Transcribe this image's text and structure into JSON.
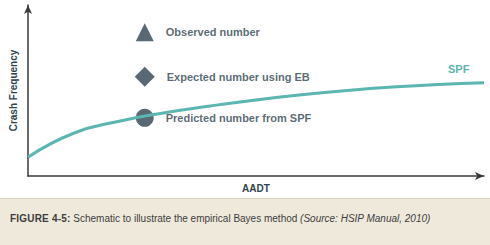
{
  "chart_data": {
    "type": "line",
    "x_label": "AADT",
    "y_label": "Crash Frequency",
    "xlim": [
      0,
      100
    ],
    "ylim": [
      0,
      100
    ],
    "tick_labels": false,
    "grid": false,
    "series": [
      {
        "name": "SPF",
        "type": "line",
        "color": "#5bb5b0",
        "marker": "none",
        "x": [
          0,
          10,
          20,
          30,
          40,
          50,
          60,
          70,
          80,
          90,
          100
        ],
        "values": [
          11,
          25,
          32,
          37,
          41,
          44.5,
          47.5,
          50,
          52,
          53.5,
          54.5
        ]
      },
      {
        "name": "Observed number",
        "type": "scatter",
        "color": "#2e4450",
        "marker": "triangle",
        "x": [
          25.6
        ],
        "values": [
          84
        ]
      },
      {
        "name": "Expected number using EB",
        "type": "scatter",
        "color": "#2e4450",
        "marker": "diamond",
        "x": [
          25.6
        ],
        "values": [
          58
        ]
      },
      {
        "name": "Predicted number from SPF",
        "type": "scatter",
        "color": "#2e4450",
        "marker": "circle",
        "x": [
          25.6
        ],
        "values": [
          34
        ]
      }
    ],
    "caption": {
      "label": "FIGURE 4-5:",
      "text": "Schematic to illustrate the empirical Bayes method",
      "source": "(Source: HSIP Manual, 2010)"
    }
  }
}
